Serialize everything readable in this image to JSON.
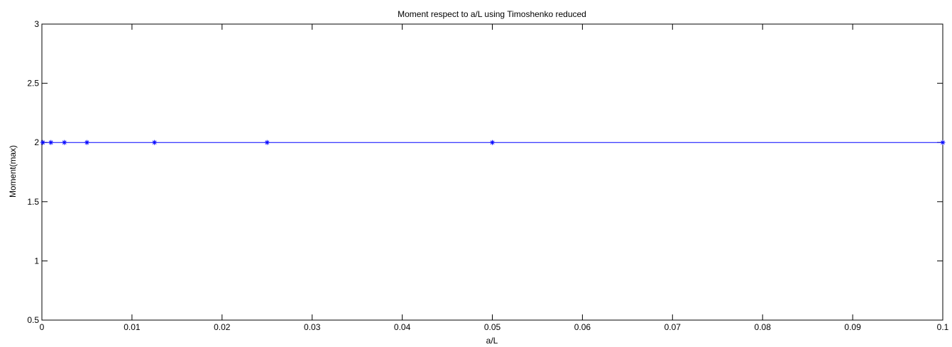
{
  "chart_data": {
    "type": "line",
    "title": "Moment respect to a/L using  Timoshenko reduced",
    "xlabel": "a/L",
    "ylabel": "Moment(max)",
    "xlim": [
      0,
      0.1
    ],
    "ylim": [
      0.5,
      3
    ],
    "xticks": [
      0,
      0.01,
      0.02,
      0.03,
      0.04,
      0.05,
      0.06,
      0.07,
      0.08,
      0.09,
      0.1
    ],
    "xtick_labels": [
      "0",
      "0.01",
      "0.02",
      "0.03",
      "0.04",
      "0.05",
      "0.06",
      "0.07",
      "0.08",
      "0.09",
      "0.1"
    ],
    "yticks": [
      0.5,
      1,
      1.5,
      2,
      2.5,
      3
    ],
    "ytick_labels": [
      "0.5",
      "1",
      "1.5",
      "2",
      "2.5",
      "3"
    ],
    "grid": false,
    "series": [
      {
        "color": "#0000ff",
        "marker": "asterisk",
        "x": [
          0.0001,
          0.001,
          0.0025,
          0.005,
          0.0125,
          0.025,
          0.05,
          0.1
        ],
        "y": [
          2,
          2,
          2,
          2,
          2,
          2,
          2,
          2
        ]
      }
    ]
  }
}
